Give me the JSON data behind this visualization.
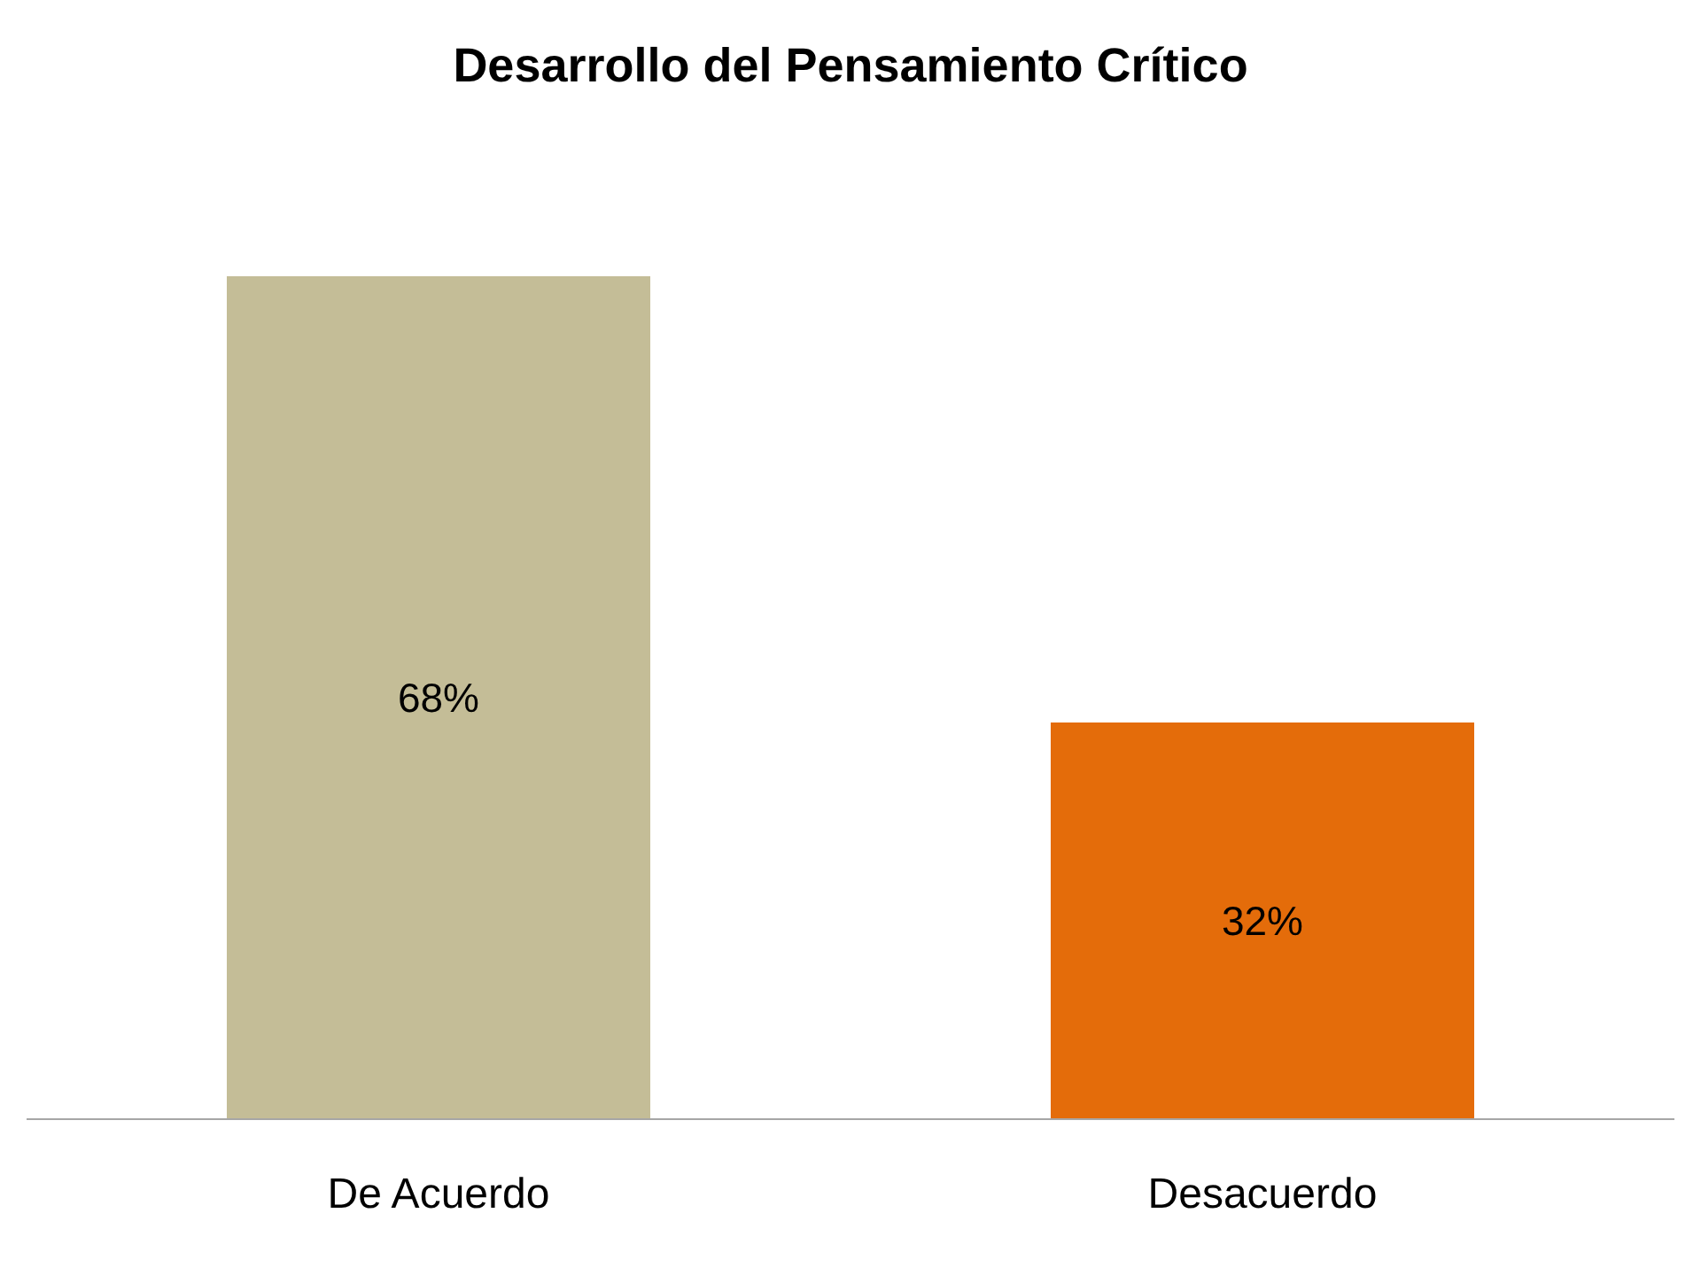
{
  "chart_data": {
    "type": "bar",
    "title": "Desarrollo del Pensamiento Crítico",
    "categories": [
      "De Acuerdo",
      "Desacuerdo"
    ],
    "values": [
      68,
      32
    ],
    "colors": [
      "#c4bd97",
      "#e46c0a"
    ],
    "value_labels": [
      "68%",
      "32%"
    ],
    "grid": false
  }
}
